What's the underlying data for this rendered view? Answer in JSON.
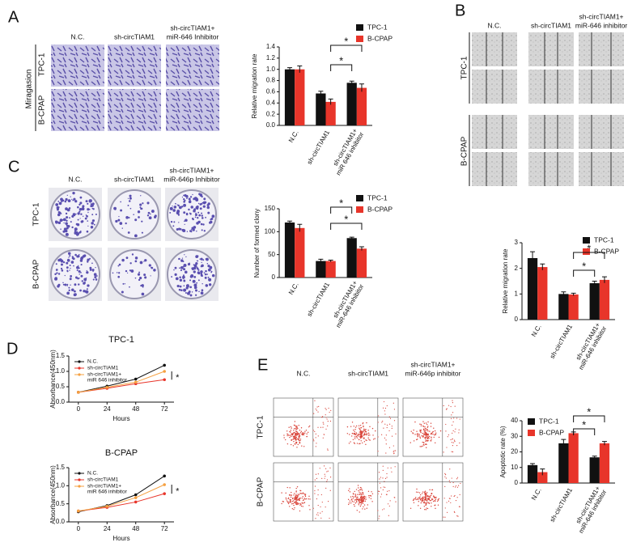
{
  "figure": {
    "panels": [
      {
        "letter": "A",
        "columns": [
          "N.C.",
          "sh-circTIAM1",
          [
            "sh-circTIAM1+",
            "miR-646 Inhibitor"
          ]
        ],
        "rows": [
          "TPC-1",
          "B-CPAP"
        ],
        "side": "Miragasion"
      },
      {
        "letter": "B",
        "columns": [
          "N.C.",
          "sh-circTIAM1",
          [
            "sh-circTIAM1+",
            "miR-646 inhibitor"
          ]
        ],
        "rows": [
          "TPC-1",
          "B-CPAP"
        ]
      },
      {
        "letter": "C",
        "columns": [
          "N.C.",
          "sh-circTIAM1",
          [
            "sh-circTIAM1+",
            "miR-646p Inhibitor"
          ]
        ],
        "rows": [
          "TPC-1",
          "B-CPAP"
        ]
      },
      {
        "letter": "D"
      },
      {
        "letter": "E",
        "columns": [
          "N.C.",
          "sh-circTIAM1",
          [
            "sh-circTIAM1+",
            "miR-646p inhibitor"
          ]
        ],
        "rows": [
          "TPC-1",
          "B-CPAP"
        ]
      }
    ]
  },
  "chart_data": [
    {
      "type": "bar",
      "ylabel": "Relative migration rate",
      "categories": [
        "N.C.",
        "sh-circTIAM1",
        [
          "sh-circTIAM1+",
          "miR 646 inhibitor"
        ]
      ],
      "series": [
        {
          "name": "TPC-1",
          "color": "#111111",
          "values": [
            1.0,
            0.57,
            0.76
          ],
          "errors": [
            0.03,
            0.04,
            0.03
          ]
        },
        {
          "name": "B-CPAP",
          "color": "#e8352a",
          "values": [
            1.0,
            0.42,
            0.67
          ],
          "errors": [
            0.06,
            0.05,
            0.07
          ]
        }
      ],
      "ylim": [
        0,
        1.4
      ],
      "yticks": [
        {
          "value": 0,
          "label": "0.0"
        },
        {
          "value": 0.2,
          "label": "0.2"
        },
        {
          "value": 0.4,
          "label": "0.4"
        },
        {
          "value": 0.6,
          "label": "0.6"
        },
        {
          "value": 0.8,
          "label": "0.8"
        },
        {
          "value": 1.0,
          "label": "1.0"
        },
        {
          "value": 1.2,
          "label": "1.2"
        },
        {
          "value": 1.4,
          "label": "1.4"
        }
      ],
      "annotations": [
        "*",
        "*"
      ]
    },
    {
      "type": "bar",
      "ylabel": "Relative  migration rate",
      "categories": [
        "N.C.",
        "sh-circTIAM1",
        [
          "sh-circTIAM1+",
          "miR-646 inhibitor"
        ]
      ],
      "series": [
        {
          "name": "TPC-1",
          "color": "#111111",
          "values": [
            2.4,
            1.0,
            1.42
          ],
          "errors": [
            0.25,
            0.08,
            0.08
          ]
        },
        {
          "name": "B-CPAP",
          "color": "#e8352a",
          "values": [
            2.05,
            0.98,
            1.55
          ],
          "errors": [
            0.12,
            0.05,
            0.12
          ]
        }
      ],
      "ylim": [
        0,
        3
      ],
      "yticks": [
        0,
        1,
        2,
        3
      ],
      "annotations": [
        "*",
        "*"
      ]
    },
    {
      "type": "bar",
      "ylabel": "Number of formed clony",
      "categories": [
        "N.C.",
        "sh-circTIAM1",
        [
          "sh-circTIAM1+",
          "miR-646 inhibitor"
        ]
      ],
      "series": [
        {
          "name": "TPC-1",
          "color": "#111111",
          "values": [
            120,
            36,
            86
          ],
          "errors": [
            3,
            4,
            2
          ]
        },
        {
          "name": "B-CPAP",
          "color": "#e8352a",
          "values": [
            108,
            36,
            63
          ],
          "errors": [
            8,
            2,
            4
          ]
        }
      ],
      "ylim": [
        0,
        150
      ],
      "yticks": [
        0,
        50,
        100,
        150
      ],
      "annotations": [
        "*",
        "*"
      ]
    },
    {
      "type": "line",
      "title": "TPC-1",
      "xlabel": "Hours",
      "ylabel": "Absorbance(450nm)",
      "x": [
        0,
        24,
        48,
        72
      ],
      "series": [
        {
          "name": "N.C.",
          "color": "#111111",
          "values": [
            0.32,
            0.52,
            0.75,
            1.2
          ]
        },
        {
          "name": "sh-circTIAM1",
          "color": "#e8352a",
          "values": [
            0.32,
            0.45,
            0.6,
            0.73
          ]
        },
        {
          "name": [
            "sh-circTIAM1+",
            "miR 646 inhibitor"
          ],
          "color": "#f5a040",
          "values": [
            0.32,
            0.48,
            0.65,
            1.0
          ]
        }
      ],
      "xlim": [
        -8,
        80
      ],
      "xticks": [
        0,
        24,
        48,
        72
      ],
      "ylim": [
        0,
        1.5
      ],
      "yticks": [
        {
          "value": 0,
          "label": "0.0"
        },
        {
          "value": 0.5,
          "label": "0.5"
        },
        {
          "value": 1.0,
          "label": "1.0"
        },
        {
          "value": 1.5,
          "label": "1.5"
        }
      ],
      "annotations": [
        "*"
      ]
    },
    {
      "type": "line",
      "title": "B-CPAP",
      "xlabel": "Hours",
      "ylabel": "Absorbance(450nm)",
      "x": [
        0,
        24,
        48,
        72
      ],
      "series": [
        {
          "name": "N.C.",
          "color": "#111111",
          "values": [
            0.28,
            0.45,
            0.75,
            1.27
          ]
        },
        {
          "name": "sh-circTIAM1",
          "color": "#e8352a",
          "values": [
            0.3,
            0.4,
            0.55,
            0.78
          ]
        },
        {
          "name": [
            "sh-circTIAM1+",
            "miR 646 inhibitor"
          ],
          "color": "#f5a040",
          "values": [
            0.3,
            0.43,
            0.67,
            1.03
          ]
        }
      ],
      "xlim": [
        -8,
        80
      ],
      "xticks": [
        0,
        24,
        48,
        72
      ],
      "ylim": [
        0,
        1.5
      ],
      "yticks": [
        {
          "value": 0,
          "label": "0.0"
        },
        {
          "value": 0.5,
          "label": "0.5"
        },
        {
          "value": 1.0,
          "label": "1.0"
        },
        {
          "value": 1.5,
          "label": "1.5"
        }
      ],
      "annotations": [
        "*"
      ]
    },
    {
      "type": "bar",
      "ylabel": "Apoptotic rate (%)",
      "categories": [
        "N.C.",
        "sh-circTIAM1",
        [
          "sh-circTIAM1+",
          "miR-646 inhibitor"
        ]
      ],
      "series": [
        {
          "name": "TPC-1",
          "color": "#111111",
          "values": [
            11.5,
            25.5,
            16.5
          ],
          "errors": [
            1,
            2.5,
            0.8
          ]
        },
        {
          "name": "B-CPAP",
          "color": "#e8352a",
          "values": [
            7,
            32,
            25.5
          ],
          "errors": [
            2,
            0.8,
            1.2
          ]
        }
      ],
      "ylim": [
        0,
        40
      ],
      "yticks": [
        0,
        10,
        20,
        30,
        40
      ],
      "annotations": [
        "*",
        "*"
      ]
    }
  ]
}
